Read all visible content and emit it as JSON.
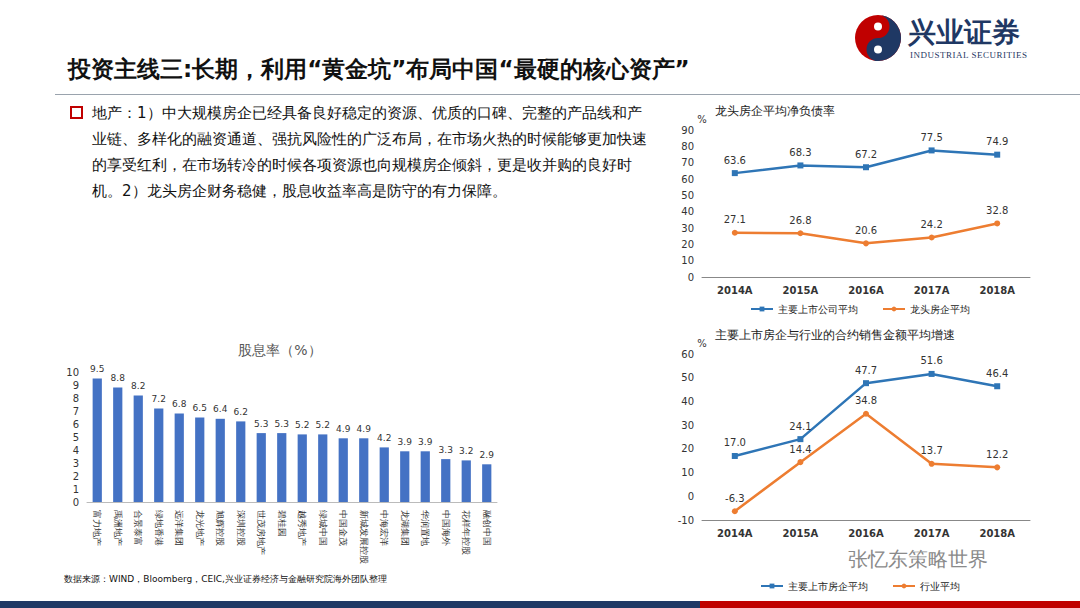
{
  "slide": {
    "title": "投资主线三:长期，利用“黄金坑”布局中国“最硬的核心资产”",
    "text": "地产：1）中大规模房企已经具备良好稳定的资源、优质的口碑、完整的产品线和产业链、多样化的融资通道、强抗风险性的广泛布局，在市场火热的时候能够更加快速的享受红利，在市场转冷的时候各项资源也向规模房企倾斜，更是收并购的良好时机。2）龙头房企财务稳健，股息收益率高是防守的有力保障。",
    "logo": {
      "name": "兴业证券",
      "name_en": "INDUSTRIAL SECURITIES"
    },
    "source": "数据来源：WIND，Bloomberg，CEIC,兴业证券经济与金融研究院海外团队整理",
    "watermark": "张忆东策略世界"
  },
  "chart_data": [
    {
      "type": "line",
      "title": "龙头房企平均净负债率",
      "y_label": "%",
      "categories": [
        "2014A",
        "2015A",
        "2016A",
        "2017A",
        "2018A"
      ],
      "series": [
        {
          "name": "主要上市公司平均",
          "color": "#2e75b6",
          "marker": "square",
          "values": [
            63.6,
            68.3,
            67.2,
            77.5,
            74.9
          ]
        },
        {
          "name": "龙头房企平均",
          "color": "#ed7d31",
          "marker": "circle",
          "values": [
            27.1,
            26.8,
            20.6,
            24.2,
            32.8
          ]
        }
      ],
      "ylim": [
        0,
        90
      ],
      "yticks": [
        0,
        10,
        20,
        30,
        40,
        50,
        60,
        70,
        80,
        90
      ],
      "grid": false,
      "legend": "bottom",
      "data_labels": true
    },
    {
      "type": "line",
      "title": "主要上市房企与行业的合约销售金额平均增速",
      "y_label": "%",
      "categories": [
        "2014A",
        "2015A",
        "2016A",
        "2017A",
        "2018A"
      ],
      "series": [
        {
          "name": "主要上市房企平均",
          "color": "#2e75b6",
          "marker": "square",
          "values": [
            17.0,
            24.1,
            47.7,
            51.6,
            46.4
          ],
          "value_labels": [
            "17.0",
            "24.1",
            "47.7",
            "51.6",
            "46.4"
          ]
        },
        {
          "name": "行业平均",
          "color": "#ed7d31",
          "marker": "circle",
          "values": [
            -6.3,
            14.4,
            34.8,
            13.7,
            12.2
          ]
        }
      ],
      "ylim": [
        -10,
        60
      ],
      "yticks": [
        -10,
        0,
        10,
        20,
        30,
        40,
        50,
        60
      ],
      "grid": false,
      "legend": "bottom",
      "data_labels": true
    },
    {
      "type": "bar",
      "title": "股息率（%）",
      "categories": [
        "富力地产",
        "禹洲地产",
        "合景泰富",
        "绿地香港",
        "远洋集团",
        "龙光地产",
        "旭辉控股",
        "深圳控股",
        "世茂房地产",
        "碧桂园",
        "越秀地产",
        "绿城中国",
        "中国金茂",
        "新城发展控股",
        "中海宏洋",
        "龙湖集团",
        "华润置地",
        "中国海外",
        "花样年控股",
        "融创中国"
      ],
      "values": [
        9.5,
        8.8,
        8.2,
        7.2,
        6.8,
        6.5,
        6.4,
        6.2,
        5.3,
        5.3,
        5.2,
        5.2,
        4.9,
        4.9,
        4.2,
        3.9,
        3.9,
        3.3,
        3.2,
        2.9
      ],
      "color": "#4472c4",
      "ylim": [
        0,
        10
      ],
      "yticks": [
        0,
        1,
        2,
        3,
        4,
        5,
        6,
        7,
        8,
        9,
        10
      ],
      "grid": false,
      "data_labels": true
    }
  ]
}
